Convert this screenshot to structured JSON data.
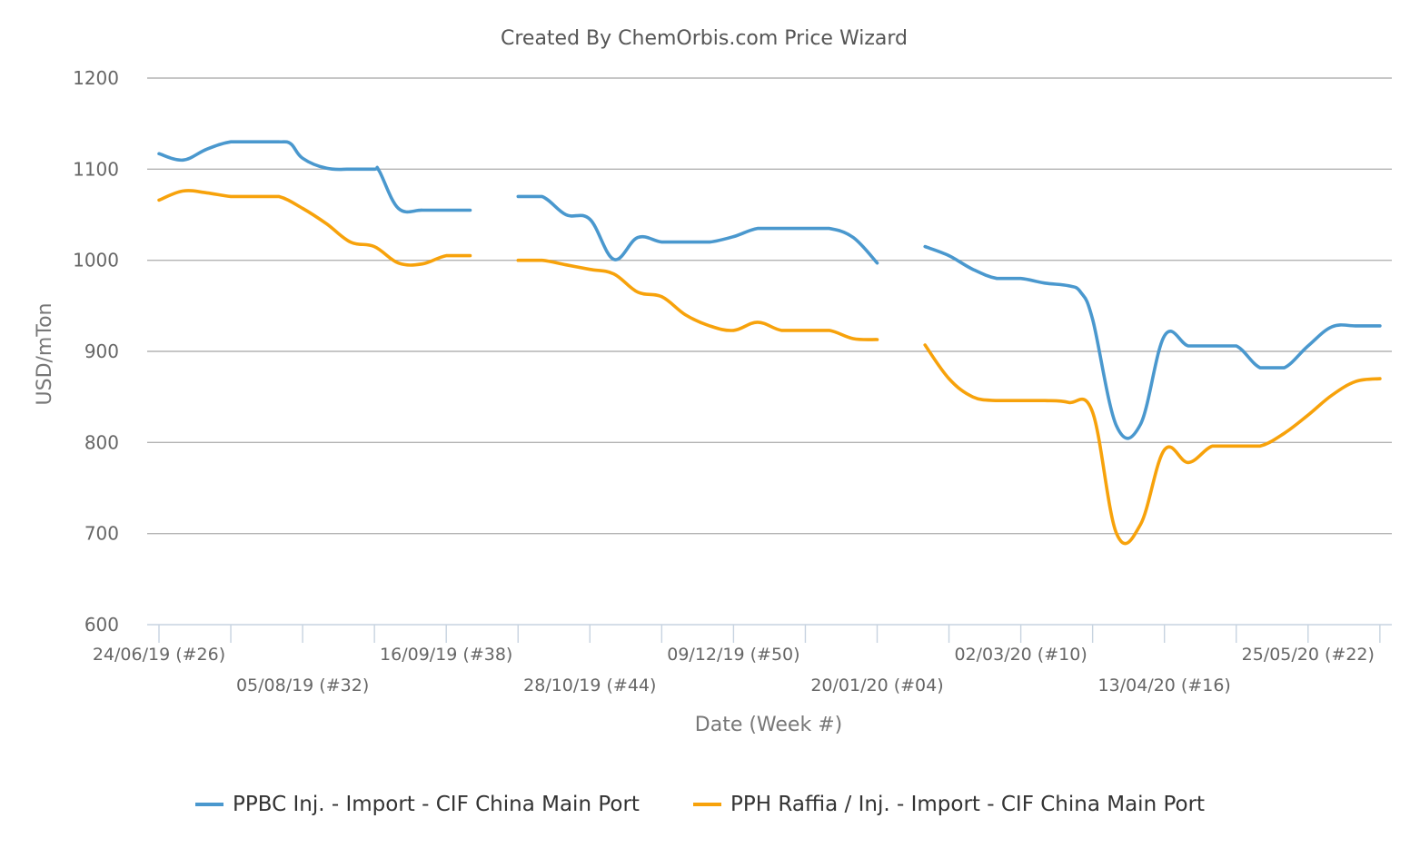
{
  "chart_data": {
    "type": "line",
    "title": "Created By ChemOrbis.com Price Wizard",
    "xlabel": "Date (Week #)",
    "ylabel": "USD/mTon",
    "ylim": [
      600,
      1200
    ],
    "yticks": [
      600,
      700,
      800,
      900,
      1000,
      1100,
      1200
    ],
    "x_weeks_range": [
      0,
      49.5
    ],
    "xtick_labels": [
      {
        "week": 0,
        "label": "24/06/19 (#26)",
        "row": 0
      },
      {
        "week": 6,
        "label": "05/08/19 (#32)",
        "row": 1
      },
      {
        "week": 12,
        "label": "16/09/19 (#38)",
        "row": 0
      },
      {
        "week": 18,
        "label": "28/10/19 (#44)",
        "row": 1
      },
      {
        "week": 24,
        "label": "09/12/19 (#50)",
        "row": 0
      },
      {
        "week": 30,
        "label": "20/01/20 (#04)",
        "row": 1
      },
      {
        "week": 36,
        "label": "02/03/20 (#10)",
        "row": 0
      },
      {
        "week": 42,
        "label": "13/04/20 (#16)",
        "row": 1
      },
      {
        "week": 48,
        "label": "25/05/20 (#22)",
        "row": 0
      }
    ],
    "minor_tick_weeks": [
      0,
      3,
      6,
      9,
      12,
      15,
      18,
      21,
      24,
      27,
      30,
      33,
      36,
      39,
      42,
      45,
      48,
      51,
      54,
      57,
      60,
      63,
      66,
      69,
      72,
      75,
      78,
      81,
      84,
      87,
      90,
      93,
      96,
      99
    ],
    "legend_position": "bottom",
    "grid": true,
    "series": [
      {
        "name": "PPBC Inj. - Import - CIF China Main Port",
        "color": "#4a98ce",
        "segments": [
          [
            [
              0,
              1117
            ],
            [
              1,
              1110
            ],
            [
              2,
              1122
            ],
            [
              3,
              1130
            ],
            [
              4,
              1130
            ],
            [
              5,
              1130
            ],
            [
              5.5,
              1128
            ],
            [
              6,
              1112
            ],
            [
              7,
              1101
            ],
            [
              8,
              1100
            ],
            [
              9,
              1100
            ],
            [
              9.2,
              1098
            ],
            [
              10,
              1057
            ],
            [
              11,
              1055
            ],
            [
              12,
              1055
            ],
            [
              13,
              1055
            ]
          ],
          [
            [
              15,
              1070
            ],
            [
              16,
              1070
            ],
            [
              17,
              1050
            ],
            [
              18,
              1045
            ],
            [
              19,
              1001
            ],
            [
              20,
              1025
            ],
            [
              21,
              1020
            ],
            [
              22,
              1020
            ],
            [
              23,
              1020
            ],
            [
              24,
              1026
            ],
            [
              25,
              1035
            ],
            [
              26,
              1035
            ],
            [
              27,
              1035
            ],
            [
              28,
              1035
            ],
            [
              29,
              1025
            ],
            [
              30,
              997
            ]
          ],
          [
            [
              32,
              1015
            ],
            [
              33,
              1005
            ],
            [
              34,
              990
            ],
            [
              35,
              980
            ],
            [
              36,
              980
            ],
            [
              37,
              975
            ],
            [
              38,
              972
            ],
            [
              38.5,
              965
            ],
            [
              39,
              935
            ],
            [
              40,
              818
            ],
            [
              41,
              820
            ],
            [
              42,
              917
            ],
            [
              43,
              906
            ],
            [
              44,
              906
            ],
            [
              45,
              906
            ],
            [
              46,
              882
            ],
            [
              47,
              882
            ],
            [
              48,
              906
            ],
            [
              49,
              927
            ],
            [
              50,
              928
            ],
            [
              51,
              928
            ]
          ]
        ]
      },
      {
        "name": "PPH Raffia / Inj. - Import - CIF China Main Port",
        "color": "#f7a20b",
        "segments": [
          [
            [
              0,
              1066
            ],
            [
              1,
              1076
            ],
            [
              2,
              1074
            ],
            [
              3,
              1070
            ],
            [
              4,
              1070
            ],
            [
              5,
              1070
            ],
            [
              6,
              1057
            ],
            [
              7,
              1040
            ],
            [
              8,
              1020
            ],
            [
              9,
              1015
            ],
            [
              10,
              997
            ],
            [
              11,
              996
            ],
            [
              12,
              1005
            ],
            [
              13,
              1005
            ]
          ],
          [
            [
              15,
              1000
            ],
            [
              16,
              1000
            ],
            [
              17,
              995
            ],
            [
              18,
              990
            ],
            [
              19,
              985
            ],
            [
              20,
              965
            ],
            [
              21,
              960
            ],
            [
              22,
              940
            ],
            [
              23,
              928
            ],
            [
              24,
              923
            ],
            [
              25,
              932
            ],
            [
              26,
              923
            ],
            [
              27,
              923
            ],
            [
              28,
              923
            ],
            [
              29,
              914
            ],
            [
              30,
              913
            ]
          ],
          [
            [
              32,
              907
            ],
            [
              33,
              870
            ],
            [
              34,
              850
            ],
            [
              35,
              846
            ],
            [
              36,
              846
            ],
            [
              37,
              846
            ],
            [
              38,
              844
            ],
            [
              39,
              833
            ],
            [
              40,
              700
            ],
            [
              41,
              710
            ],
            [
              42,
              792
            ],
            [
              43,
              778
            ],
            [
              44,
              796
            ],
            [
              45,
              796
            ],
            [
              46,
              796
            ],
            [
              47,
              810
            ],
            [
              48,
              830
            ],
            [
              49,
              852
            ],
            [
              50,
              867
            ],
            [
              51,
              870
            ]
          ]
        ]
      }
    ]
  }
}
